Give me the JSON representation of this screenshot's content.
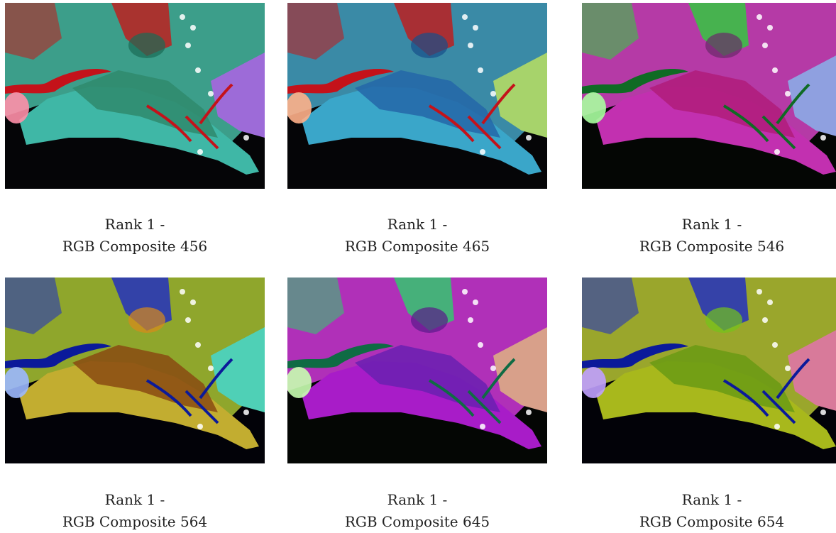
{
  "figure": {
    "panels": [
      {
        "id": "456",
        "caption_line1": "Rank 1 -",
        "caption_line2": "RGB Composite 456",
        "colors": {
          "land": "#3fb7a6",
          "wetland": "#2f8a6c",
          "river": "#c4121a",
          "upland": "#3c9e8a",
          "urban": "#9d6bd8",
          "veg": "#c41818",
          "lake": "#1a6b55",
          "sea": "#050507",
          "cloud": "#ff8fa8"
        }
      },
      {
        "id": "465",
        "caption_line1": "Rank 1 -",
        "caption_line2": "RGB Composite 465",
        "colors": {
          "land": "#3aa6c9",
          "wetland": "#2466a8",
          "river": "#c4121a",
          "upland": "#3a8aa6",
          "urban": "#a7d36b",
          "veg": "#c41818",
          "lake": "#174f8a",
          "sea": "#050507",
          "cloud": "#ffb08a"
        }
      },
      {
        "id": "546",
        "caption_line1": "Rank 1 -",
        "caption_line2": "RGB Composite 546",
        "colors": {
          "land": "#c230b0",
          "wetland": "#b01c7a",
          "river": "#0f6b24",
          "upland": "#b53aa6",
          "urban": "#8fa0e0",
          "veg": "#2cd13a",
          "lake": "#6a2a6a",
          "sea": "#040604",
          "cloud": "#a8ffa0"
        }
      },
      {
        "id": "564",
        "caption_line1": "Rank 1 -",
        "caption_line2": "RGB Composite 564",
        "colors": {
          "land": "#c2ad30",
          "wetland": "#8a4a12",
          "river": "#0b1a9a",
          "upland": "#8fa62c",
          "urban": "#4fd0b6",
          "veg": "#1b29c8",
          "lake": "#d98a1a",
          "sea": "#020208",
          "cloud": "#9bb8ff"
        }
      },
      {
        "id": "645",
        "caption_line1": "Rank 1 -",
        "caption_line2": "RGB Composite 645",
        "colors": {
          "land": "#a81cc8",
          "wetland": "#6a20b0",
          "river": "#0f6b44",
          "upland": "#b030b8",
          "urban": "#d8a08a",
          "veg": "#2cd16a",
          "lake": "#5a1a8a",
          "sea": "#040604",
          "cloud": "#c8ffb0"
        }
      },
      {
        "id": "654",
        "caption_line1": "Rank 1 -",
        "caption_line2": "RGB Composite 654",
        "colors": {
          "land": "#a8b81c",
          "wetland": "#6a9a14",
          "river": "#0b1a9a",
          "upland": "#9aa62c",
          "urban": "#d87a9a",
          "veg": "#1b29c8",
          "lake": "#74c41a",
          "sea": "#020208",
          "cloud": "#c0a0ff"
        }
      }
    ]
  }
}
